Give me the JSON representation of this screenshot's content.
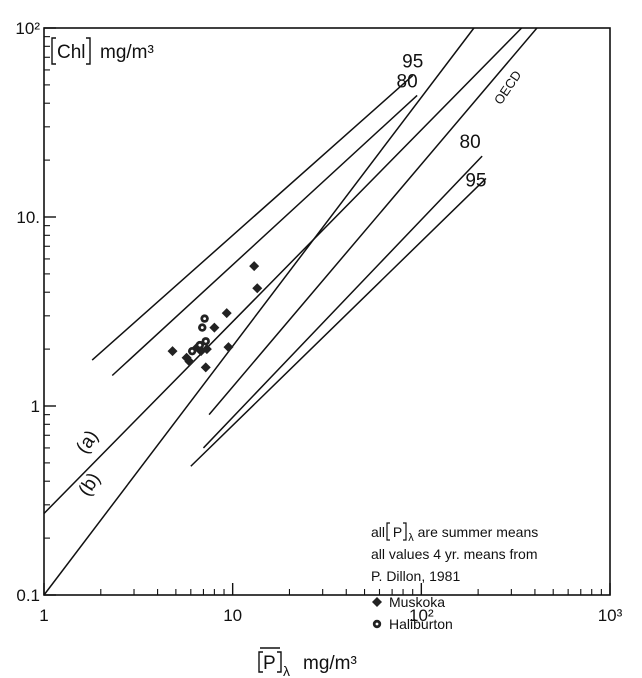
{
  "chart_data": {
    "type": "scatter",
    "title": "",
    "scale": {
      "x": "log",
      "y": "log"
    },
    "xlim": [
      1,
      1000
    ],
    "ylim": [
      0.1,
      100
    ],
    "grid": false,
    "x_ticks": [
      {
        "value": 1,
        "label": "1"
      },
      {
        "value": 10,
        "label": "10"
      },
      {
        "value": 100,
        "label": "10²"
      },
      {
        "value": 1000,
        "label": "10³"
      }
    ],
    "y_ticks": [
      {
        "value": 0.1,
        "label": "0.1"
      },
      {
        "value": 1,
        "label": "1"
      },
      {
        "value": 10,
        "label": "10."
      },
      {
        "value": 100,
        "label": "10²"
      }
    ],
    "xlabel": {
      "symbol": "P",
      "subscript": "λ",
      "unit": "mg/m³"
    },
    "ylabel": {
      "symbol": "Chl",
      "unit": "mg/m³"
    },
    "lines": [
      {
        "name": "95",
        "points": [
          [
            1.8,
            1.75
          ],
          [
            90,
            56
          ]
        ]
      },
      {
        "name": "80",
        "points": [
          [
            2.3,
            1.45
          ],
          [
            95,
            44
          ]
        ]
      },
      {
        "name": "80",
        "points": [
          [
            7,
            0.6
          ],
          [
            210,
            21
          ]
        ]
      },
      {
        "name": "95",
        "points": [
          [
            6,
            0.48
          ],
          [
            220,
            16
          ]
        ]
      },
      {
        "name": "(a)",
        "points": [
          [
            1,
            0.27
          ],
          [
            340,
            100
          ]
        ]
      },
      {
        "name": "(b)",
        "points": [
          [
            1,
            0.1
          ],
          [
            190,
            100
          ]
        ]
      },
      {
        "name": "OECD",
        "points": [
          [
            7.5,
            0.9
          ],
          [
            410,
            100
          ]
        ]
      }
    ],
    "series": [
      {
        "name": "Muskoka",
        "marker": "diamond",
        "points": [
          [
            4.8,
            1.95
          ],
          [
            5.7,
            1.8
          ],
          [
            5.9,
            1.72
          ],
          [
            6.5,
            2.05
          ],
          [
            6.8,
            1.95
          ],
          [
            7.3,
            2.0
          ],
          [
            7.2,
            1.6
          ],
          [
            8.0,
            2.6
          ],
          [
            9.3,
            3.1
          ],
          [
            9.5,
            2.05
          ],
          [
            13.0,
            5.5
          ],
          [
            13.5,
            4.2
          ]
        ]
      },
      {
        "name": "Haliburton",
        "marker": "circle",
        "points": [
          [
            6.7,
            2.1
          ],
          [
            6.9,
            2.6
          ],
          [
            7.1,
            2.9
          ],
          [
            6.1,
            1.95
          ],
          [
            7.2,
            2.2
          ]
        ]
      }
    ],
    "annotation": {
      "line1_pre": "all ",
      "line1_symbol": "P",
      "line1_sub": "λ",
      "line1_post": " are summer means",
      "line2": "all values 4 yr. means from",
      "line3": "P. Dillon, 1981"
    }
  }
}
